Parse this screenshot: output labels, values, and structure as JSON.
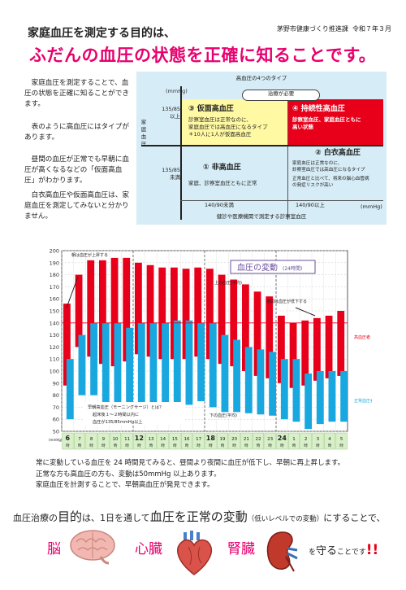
{
  "header": {
    "title_line1": "家庭血圧を測定する目的は、",
    "title_line2": "ふだんの血圧の状態を正確に知ることです。",
    "organization": "茅野市健康づくり推進課",
    "date": "令和７年３月"
  },
  "intro": {
    "paragraphs": [
      "家庭血圧を測定することで、血圧の状態を正確に知ることができます。",
      "表のように高血圧にはタイプがあります。",
      "昼間の血圧が正常でも早朝に血圧が高くなるなどの「仮面高血圧」がわかります。",
      "白衣高血圧や仮面高血圧は、家庭血圧を測定してみないと分かりません。"
    ]
  },
  "types_table": {
    "title": "高血圧の4つのタイプ",
    "unit_top": "(mmHg)",
    "vertical_label": [
      "家",
      "庭",
      "血",
      "圧"
    ],
    "y_row1_value": "135/85",
    "y_row1_suffix": "以上",
    "y_row2_value": "135/85",
    "y_row2_suffix": "未満",
    "badge": "治療が必要",
    "cells": {
      "masked": {
        "title": "③ 仮面高血圧",
        "desc": [
          "診察室血圧は正常なのに、",
          "家庭血圧では高血圧になるタイプ",
          "＊10人に1人が仮面高血圧"
        ]
      },
      "sustained": {
        "title": "④ 持続性高血圧",
        "desc": [
          "診察室血圧、家庭血圧ともに",
          "高い状態"
        ]
      },
      "normal": {
        "title": "① 非高血圧",
        "desc": [
          "家庭、診察室血圧ともに正常"
        ]
      },
      "white_coat": {
        "title": "② 白衣高血圧",
        "desc": [
          "家庭血圧は正常なのに、",
          "診察室血圧では高血圧になるタイプ",
          "正常血圧と比べて、将来の脳心血管病",
          "の発症リスクが高い"
        ]
      }
    },
    "x_left": "140/90未満",
    "x_right": "140/90以上",
    "x_unit": "(mmHg)",
    "x_label": "健診や医療機関で測定する診察室血圧"
  },
  "chart_data": {
    "type": "bar",
    "title": "血圧の変動",
    "title_suffix": "(24時間)",
    "hours": [
      "6",
      "7",
      "8",
      "9",
      "10",
      "11",
      "12",
      "13",
      "14",
      "15",
      "16",
      "17",
      "18",
      "19",
      "20",
      "21",
      "22",
      "23",
      "24",
      "1",
      "2",
      "3",
      "4",
      "5"
    ],
    "hour_unit": "時",
    "y_ticks": [
      50,
      60,
      70,
      80,
      90,
      100,
      110,
      120,
      130,
      140,
      150,
      160,
      170,
      180,
      190,
      200
    ],
    "ylim": [
      50,
      200
    ],
    "y_unit_label": "(mmHg)",
    "series": [
      {
        "name": "高血圧者",
        "color": "#e8001a",
        "systolic": [
          156,
          180,
          192,
          192,
          194,
          194,
          190,
          188,
          186,
          186,
          185,
          186,
          185,
          180,
          176,
          172,
          166,
          162,
          146,
          140,
          142,
          144,
          146,
          150
        ],
        "diastolic": [
          88,
          120,
          112,
          106,
          104,
          108,
          114,
          112,
          110,
          110,
          110,
          112,
          110,
          106,
          104,
          100,
          96,
          94,
          90,
          86,
          88,
          92,
          94,
          96
        ]
      },
      {
        "name": "正常血圧者",
        "color": "#19a7e0",
        "systolic": [
          110,
          130,
          140,
          140,
          140,
          136,
          140,
          140,
          140,
          142,
          142,
          140,
          140,
          130,
          126,
          120,
          118,
          116,
          110,
          110,
          98,
          100,
          100,
          100
        ],
        "diastolic": [
          60,
          80,
          80,
          70,
          70,
          70,
          66,
          65,
          65,
          70,
          72,
          75,
          70,
          66,
          66,
          65,
          64,
          63,
          60,
          58,
          52,
          56,
          58,
          58
        ]
      }
    ],
    "reference_line": 140,
    "annotations": {
      "morning_rise": "朝は血圧が上昇する",
      "upper_avg": "上の血圧(平均)",
      "lower_avg": "下の血圧(平均)",
      "night_drop": "夜間は血圧が低下する",
      "surge_q": "早朝高血圧（モーニングサージ）とは？",
      "surge_a1": "起床後１～２時間以内に",
      "surge_a2": "血圧が135/85mmHg以上",
      "high_bp_label": "高血圧者",
      "normal_bp_label": "正常血圧者"
    }
  },
  "bottom_text": [
    "常に変動している血圧を 24 時間見てみると、昼間より夜間に血圧が低下し、早朝に再上昇します。",
    "正常な方も高血圧の方も、変動は50mmHg 以上あります。",
    "家庭血圧を計測することで、早朝高血圧が発見できます。"
  ],
  "goal": {
    "p1": "血圧治療の",
    "p2": "目的",
    "p3": "は、1日を通して",
    "p4": "血圧を正常の変動",
    "p5": "（低いレベルでの変動）",
    "p6": "にすることで、"
  },
  "organs": {
    "brain": "脳",
    "heart": "心臓",
    "kidney": "腎臓"
  },
  "closing": {
    "p1": "を",
    "p2": "守る",
    "p3": "ことです",
    "p4": "!!"
  }
}
